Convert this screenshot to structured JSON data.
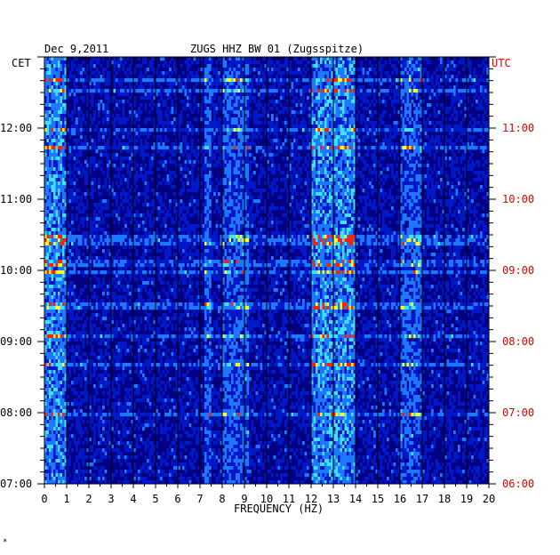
{
  "header": {
    "date": "Dec 9,2011",
    "station": "ZUGS HHZ BW 01 (Zugsspitze)",
    "left_timezone": "CET",
    "right_timezone": "UTC"
  },
  "footer_mark": "*",
  "colors": {
    "background": "#000080",
    "low": "#0018c8",
    "mid": "#1e78ff",
    "cyan": "#40e0ff",
    "yellow": "#ffff20",
    "red": "#ff2000",
    "grid": "#000000",
    "utc_labels": "#e00000"
  },
  "chart_data": {
    "type": "heatmap",
    "title": "ZUGS HHZ BW 01 (Zugsspitze)",
    "xlabel": "FREQUENCY (HZ)",
    "x_ticks": [
      "0",
      "1",
      "2",
      "3",
      "4",
      "5",
      "6",
      "7",
      "8",
      "9",
      "10",
      "11",
      "12",
      "13",
      "14",
      "15",
      "16",
      "17",
      "18",
      "19",
      "20"
    ],
    "xlim": [
      0,
      20
    ],
    "y_ticks_left": [
      "12:00",
      "11:00",
      "10:00",
      "09:00",
      "08:00",
      "07:00"
    ],
    "y_ticks_right": [
      "11:00",
      "10:00",
      "09:00",
      "08:00",
      "07:00",
      "06:00"
    ],
    "y_tick_hours_cet": [
      12,
      11,
      10,
      9,
      8,
      7
    ],
    "ylim_cet": [
      "07:00",
      "13:00"
    ],
    "minor_ticks_per_hour": 6,
    "colorscale": [
      "dark blue",
      "blue",
      "cyan",
      "yellow",
      "red"
    ],
    "features": [
      {
        "label": "low-frequency band",
        "freq_range": [
          0.0,
          1.0
        ],
        "intensity": "high"
      },
      {
        "label": "line near 7.4 Hz",
        "freq_range": [
          7.2,
          7.5
        ],
        "intensity": "medium"
      },
      {
        "label": "band 8-9 Hz",
        "freq_range": [
          8.0,
          9.2
        ],
        "intensity": "medium"
      },
      {
        "label": "band 12-14 Hz",
        "freq_range": [
          12.0,
          14.0
        ],
        "intensity": "high"
      },
      {
        "label": "band 16-17 Hz",
        "freq_range": [
          16.0,
          17.0
        ],
        "intensity": "medium"
      }
    ]
  }
}
